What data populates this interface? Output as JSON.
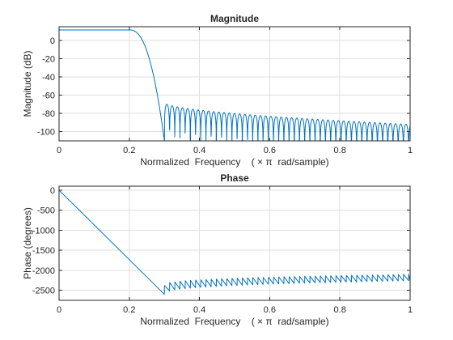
{
  "chart_data": [
    {
      "type": "line",
      "title": "Magnitude",
      "xlabel": "Normalized  Frequency    ( × π  rad/sample)",
      "ylabel": "Magnitude (dB)",
      "xlim": [
        0,
        1
      ],
      "ylim": [
        -110,
        15
      ],
      "xticks": [
        0,
        0.2,
        0.4,
        0.6,
        0.8,
        1
      ],
      "xtick_labels": [
        "0",
        "0.2",
        "0.4",
        "0.6",
        "0.8",
        "1"
      ],
      "yticks": [
        0,
        -20,
        -40,
        -60,
        -80,
        -100
      ],
      "ytick_labels": [
        "0",
        "-20",
        "-40",
        "-60",
        "-80",
        "-100"
      ],
      "grid": true,
      "color": "#0072bd",
      "series": [
        {
          "passband_level_db": 11.5,
          "passband_edge": 0.2,
          "stopband_edge": 0.3,
          "first_sidelobe_peak_db": -68,
          "last_sidelobe_peak_db": -92,
          "lobe_width": 0.0148,
          "null_floor_db": -110
        }
      ]
    },
    {
      "type": "line",
      "title": "Phase",
      "xlabel": "Normalized  Frequency    ( × π  rad/sample)",
      "ylabel": "Phase (degrees)",
      "xlim": [
        0,
        1
      ],
      "ylim": [
        -2750,
        100
      ],
      "xticks": [
        0,
        0.2,
        0.4,
        0.6,
        0.8,
        1
      ],
      "xtick_labels": [
        "0",
        "0.2",
        "0.4",
        "0.6",
        "0.8",
        "1"
      ],
      "yticks": [
        0,
        -500,
        -1000,
        -1500,
        -2000,
        -2500
      ],
      "ytick_labels": [
        "0",
        "-500",
        "-1000",
        "-1500",
        "-2000",
        "-2500"
      ],
      "grid": true,
      "color": "#0072bd",
      "series": [
        {
          "points": [
            [
              0,
              0
            ],
            [
              0.3,
              -2600
            ]
          ],
          "ripple_start": 0.3,
          "ripple_start_low_deg": -2600,
          "ripple_start_high_deg": -2380,
          "ripple_end_low_deg": -2260,
          "ripple_end_high_deg": -2100,
          "ripple_period": 0.0148
        }
      ]
    }
  ]
}
